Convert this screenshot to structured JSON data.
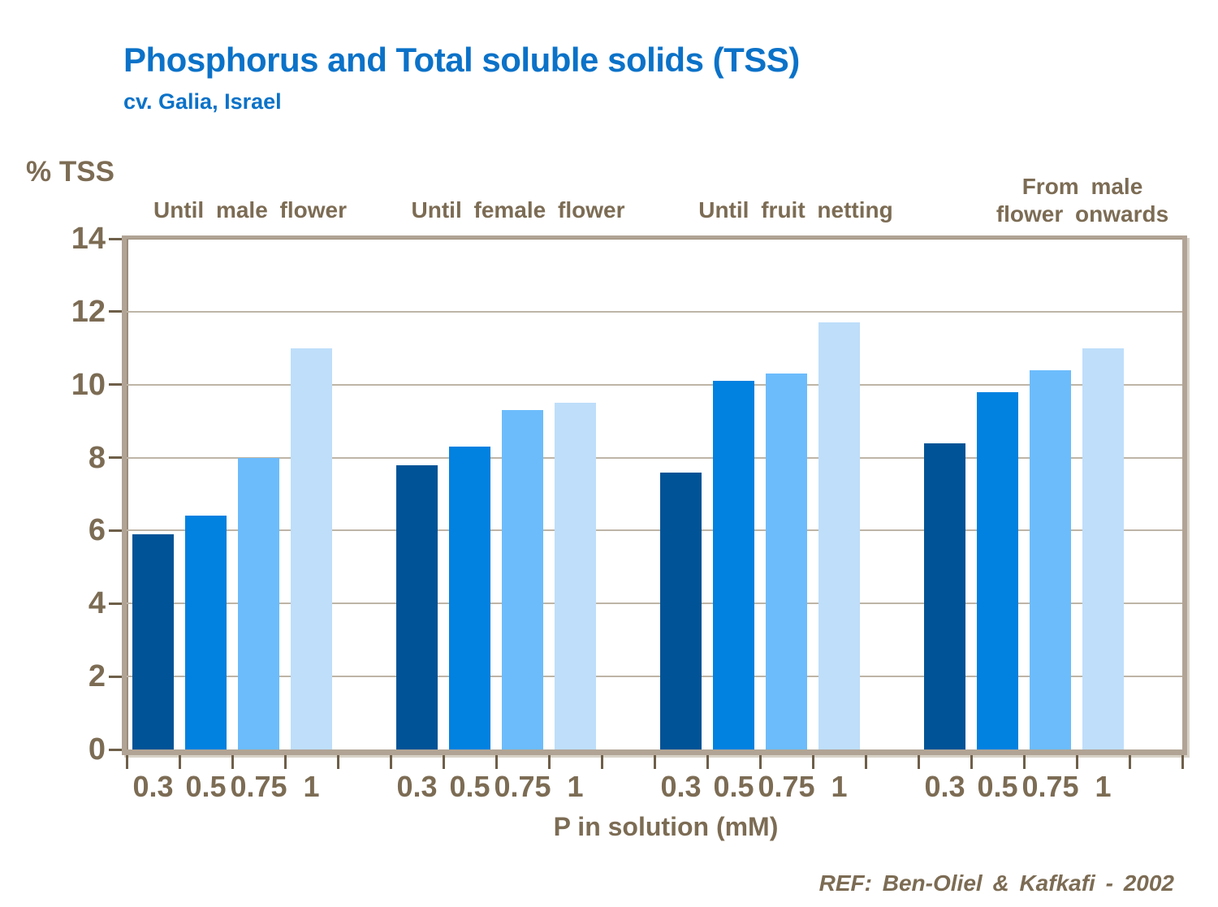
{
  "page": {
    "title": "Phosphorus and Total soluble solids (TSS)",
    "subtitle": "cv. Galia, Israel",
    "reference": "REF: Ben-Oliel & Kafkafi - 2002"
  },
  "chart_data": {
    "type": "bar",
    "title": "Phosphorus and Total soluble solids (TSS)",
    "subtitle": "cv. Galia, Israel",
    "ylabel": "% TSS",
    "xlabel": "P in solution (mM)",
    "ylim": [
      0,
      14
    ],
    "yticks": [
      0,
      2,
      4,
      6,
      8,
      10,
      12,
      14
    ],
    "grid": true,
    "legend": "none",
    "categories": [
      "Until male flower",
      "Until female flower",
      "Until fruit netting",
      "From male flower onwards"
    ],
    "series": [
      {
        "name": "0.3",
        "color": "#005396",
        "values": [
          5.9,
          7.8,
          7.6,
          8.4
        ]
      },
      {
        "name": "0.5",
        "color": "#0181E0",
        "values": [
          6.4,
          8.3,
          10.1,
          9.8
        ]
      },
      {
        "name": "0.75",
        "color": "#6CBCFC",
        "values": [
          8.0,
          9.3,
          10.3,
          10.4
        ]
      },
      {
        "name": "1",
        "color": "#BEDEFA",
        "values": [
          11.0,
          9.5,
          11.7,
          11.0
        ]
      }
    ],
    "colors": {
      "title": "#0B72C8",
      "text": "#7C6C54",
      "axis_frame": "#B1A495",
      "gridline": "#BEB5A7",
      "tick_mark": "#6E5F49",
      "background": "#FFFFFF"
    }
  }
}
